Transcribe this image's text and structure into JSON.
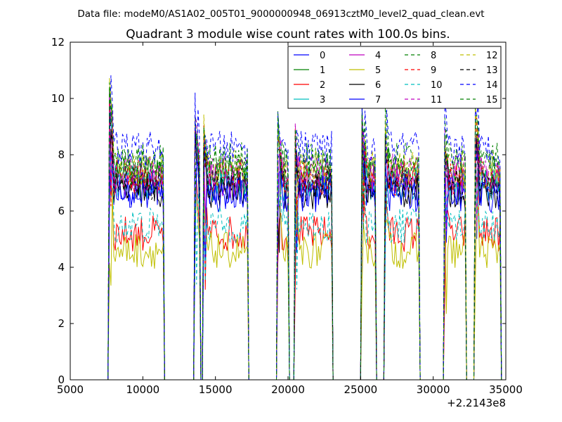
{
  "header": "Data file: modeM0/AS1A02_005T01_9000000948_06913cztM0_level2_quad_clean.evt",
  "chart_data": {
    "type": "line",
    "title": "Quadrant 3 module wise count rates with 100.0s bins.",
    "xlabel": "",
    "ylabel": "",
    "x_offset_label": "+2.2143e8",
    "xlim": [
      5000,
      35000
    ],
    "ylim": [
      0,
      12
    ],
    "xticks": [
      5000,
      10000,
      15000,
      20000,
      25000,
      30000,
      35000
    ],
    "yticks": [
      0,
      2,
      4,
      6,
      8,
      10,
      12
    ],
    "grid": false,
    "legend_position": "top-right",
    "legend_columns": 4,
    "time_bin_s": 100,
    "active_segments": [
      {
        "start": 7700,
        "end": 11400,
        "peak": 11.3
      },
      {
        "start": 13600,
        "end": 13900,
        "peak": 9.9
      },
      {
        "start": 14200,
        "end": 17200,
        "peak": 9.4
      },
      {
        "start": 19300,
        "end": 20000,
        "peak": 9.5
      },
      {
        "start": 20500,
        "end": 23000,
        "peak": 9.1
      },
      {
        "start": 25100,
        "end": 26000,
        "peak": 10.0
      },
      {
        "start": 26700,
        "end": 29000,
        "peak": 9.3
      },
      {
        "start": 30800,
        "end": 32200,
        "peak": 9.1
      },
      {
        "start": 32900,
        "end": 34600,
        "peak": 10.3
      }
    ],
    "series": [
      {
        "name": "0",
        "color": "#0000ff",
        "dash": "solid",
        "base": 6.8
      },
      {
        "name": "1",
        "color": "#008000",
        "dash": "solid",
        "base": 7.3
      },
      {
        "name": "2",
        "color": "#ff0000",
        "dash": "solid",
        "base": 5.2
      },
      {
        "name": "3",
        "color": "#00bfbf",
        "dash": "solid",
        "base": 7.0
      },
      {
        "name": "4",
        "color": "#bf00bf",
        "dash": "solid",
        "base": 7.1
      },
      {
        "name": "5",
        "color": "#bfbf00",
        "dash": "solid",
        "base": 4.6
      },
      {
        "name": "6",
        "color": "#000000",
        "dash": "solid",
        "base": 6.7
      },
      {
        "name": "7",
        "color": "#0000ff",
        "dash": "solid",
        "base": 6.6
      },
      {
        "name": "8",
        "color": "#008000",
        "dash": "dashed",
        "base": 7.6
      },
      {
        "name": "9",
        "color": "#ff0000",
        "dash": "dashed",
        "base": 7.2
      },
      {
        "name": "10",
        "color": "#00bfbf",
        "dash": "dashed",
        "base": 5.5
      },
      {
        "name": "11",
        "color": "#bf00bf",
        "dash": "dashed",
        "base": 7.4
      },
      {
        "name": "12",
        "color": "#bfbf00",
        "dash": "dashed",
        "base": 7.5
      },
      {
        "name": "13",
        "color": "#000000",
        "dash": "dashed",
        "base": 7.0
      },
      {
        "name": "14",
        "color": "#0000ff",
        "dash": "dashed",
        "base": 8.2
      },
      {
        "name": "15",
        "color": "#008000",
        "dash": "dashed",
        "base": 7.8
      }
    ]
  }
}
